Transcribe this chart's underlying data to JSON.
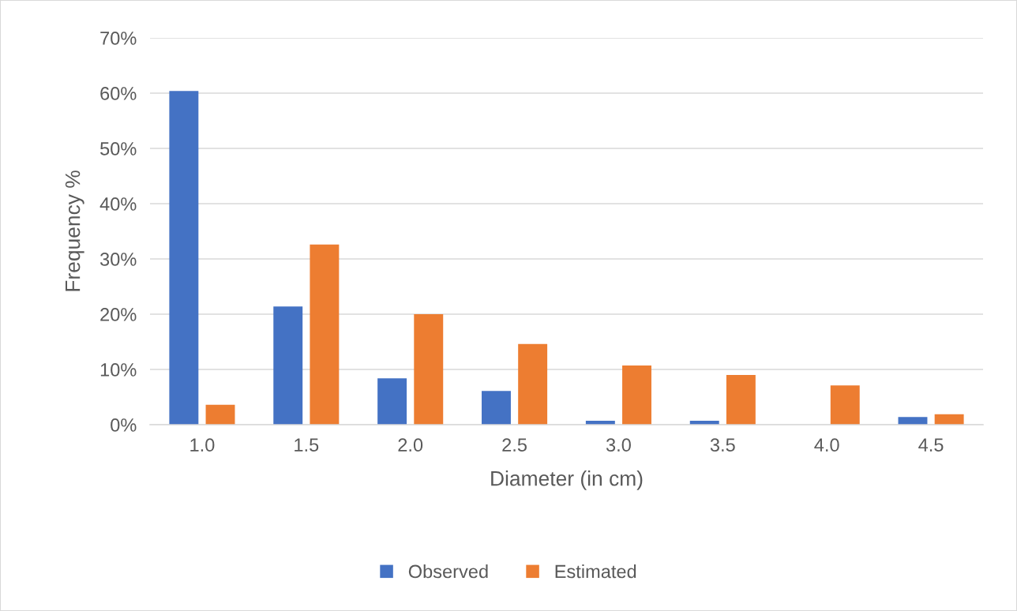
{
  "chart_data": {
    "type": "bar",
    "xlabel": "Diameter (in cm)",
    "ylabel": "Frequency %",
    "categories": [
      "1.0",
      "1.5",
      "2.0",
      "2.5",
      "3.0",
      "3.5",
      "4.0",
      "4.5"
    ],
    "series": [
      {
        "name": "Observed",
        "color": "#4472c4",
        "values": [
          60.4,
          21.4,
          8.4,
          6.1,
          0.7,
          0.7,
          0,
          1.4
        ]
      },
      {
        "name": "Estimated",
        "color": "#ed7d31",
        "values": [
          3.6,
          32.6,
          20.0,
          14.6,
          10.7,
          9.0,
          7.1,
          1.9
        ]
      }
    ],
    "ylim": [
      0,
      70
    ],
    "yticks": [
      {
        "value": 0,
        "label": "0%"
      },
      {
        "value": 10,
        "label": "10%"
      },
      {
        "value": 20,
        "label": "20%"
      },
      {
        "value": 30,
        "label": "30%"
      },
      {
        "value": 40,
        "label": "40%"
      },
      {
        "value": 50,
        "label": "50%"
      },
      {
        "value": 60,
        "label": "60%"
      },
      {
        "value": 70,
        "label": "70%"
      }
    ],
    "grid": "y",
    "legend": "bottom"
  }
}
